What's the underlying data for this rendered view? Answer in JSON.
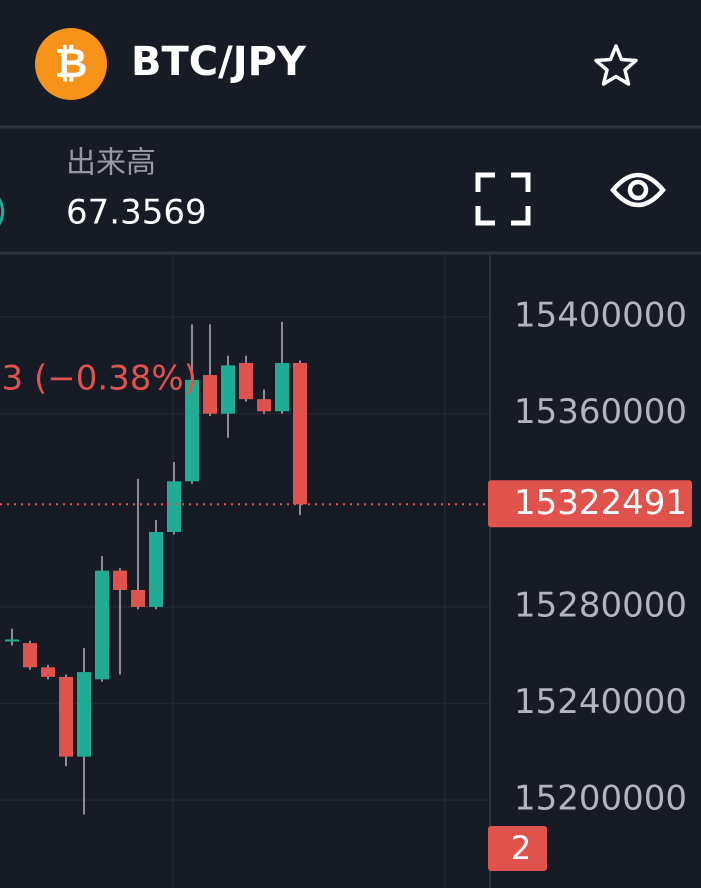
{
  "header": {
    "icon": "₿",
    "title": "BTC/JPY"
  },
  "stats": {
    "partial": ")",
    "volume_label": "出来高",
    "volume": "67.3569"
  },
  "chart_data": {
    "type": "candlestick",
    "change_label": "3 (−0.38%)",
    "last_price": 15322491,
    "ylim": [
      15163600,
      15425700
    ],
    "yticks": [
      15200000,
      15240000,
      15280000,
      15360000,
      15400000
    ],
    "grid": true,
    "up_color": "#22ab94",
    "down_color": "#e0534d",
    "open": [
      15266000,
      15265000,
      15255000,
      15251000,
      15218000,
      15250000,
      15295000,
      15287000,
      15280000,
      15311000,
      15332000,
      15376000,
      15360000,
      15381000,
      15366000,
      15361000,
      15381000
    ],
    "high": [
      15271000,
      15266000,
      15256000,
      15252000,
      15263000,
      15301000,
      15296000,
      15333000,
      15316000,
      15340000,
      15397000,
      15397000,
      15384000,
      15384000,
      15370000,
      15398000,
      15382000
    ],
    "low": [
      15264000,
      15254000,
      15250000,
      15214000,
      15194000,
      15249000,
      15252000,
      15279000,
      15279000,
      15310000,
      15331000,
      15359000,
      15350000,
      15365000,
      15360000,
      15360000,
      15318000
    ],
    "close": [
      15266500,
      15255000,
      15251000,
      15218000,
      15253000,
      15295000,
      15287000,
      15280000,
      15311000,
      15332000,
      15374000,
      15360000,
      15380000,
      15366000,
      15361000,
      15381000,
      15322491
    ]
  },
  "badge": "2"
}
